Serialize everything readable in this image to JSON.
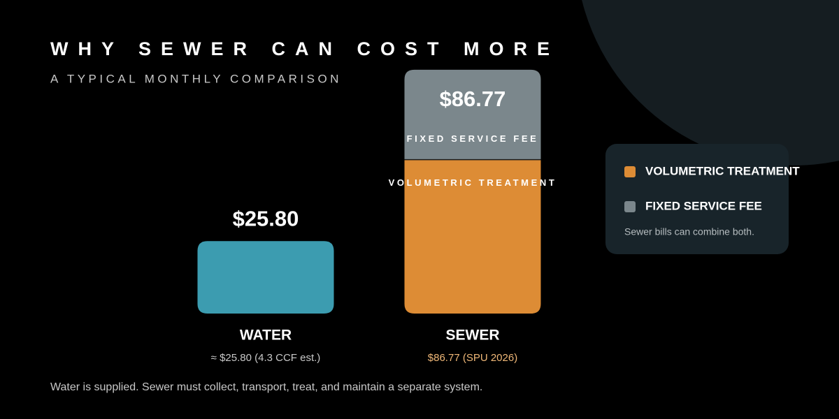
{
  "chart_data": {
    "type": "bar",
    "title": "WHY SEWER CAN COST MORE",
    "subtitle": "A TYPICAL MONTHLY COMPARISON",
    "categories": [
      "WATER",
      "SEWER"
    ],
    "category_notes": [
      "≈ $25.80 (4.3 CCF est.)",
      "$86.77 (SPU 2026)"
    ],
    "series": [
      {
        "color": "#3c9cb0",
        "values": [
          25.8,
          null
        ]
      },
      {
        "name": "VOLUMETRIC TREATMENT",
        "color": "#dd8c35",
        "values": [
          null,
          54.8
        ]
      },
      {
        "name": "FIXED SERVICE FEE",
        "color": "#7b878c",
        "values": [
          null,
          32
        ]
      }
    ],
    "totals": [
      25.8,
      86.77
    ],
    "total_labels": [
      "$25.80",
      "$86.77"
    ],
    "ylim": [
      0,
      90
    ],
    "legend_note": "Sewer bills can combine both.",
    "footnote": "Water is supplied. Sewer must collect, transport, treat, and maintain a separate system."
  }
}
